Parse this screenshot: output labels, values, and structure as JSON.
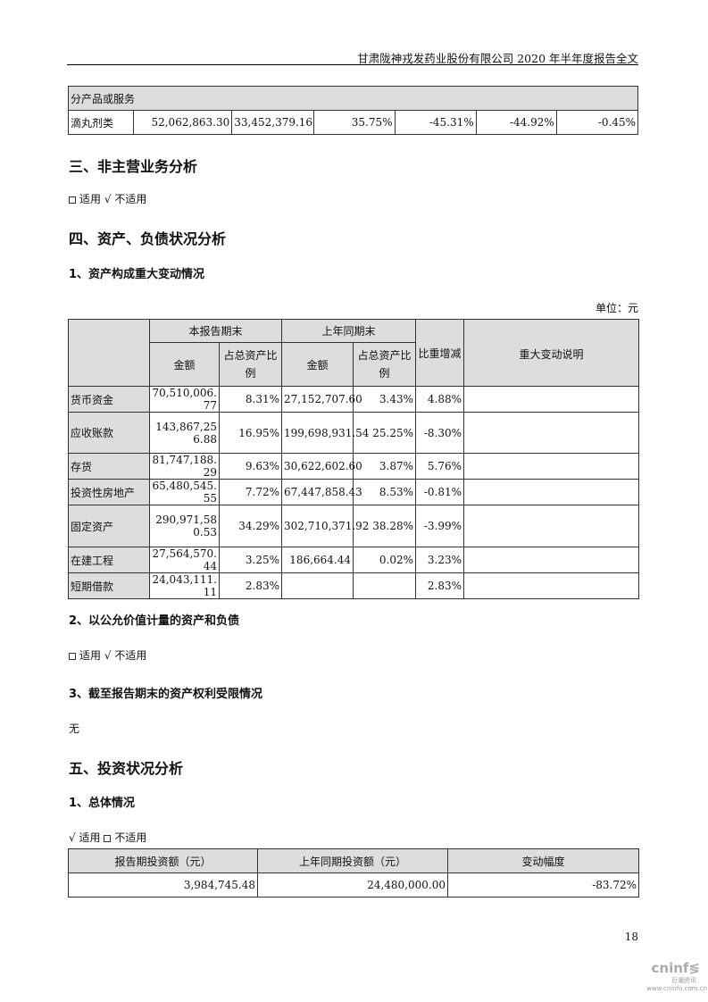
{
  "header": "甘肃陇神戎发药业股份有限公司 2020 年半年度报告全文",
  "product_table": {
    "section": "分产品或服务",
    "row": [
      "滴丸剂类",
      "52,062,863.30",
      "33,452,379.16",
      "35.75%",
      "-45.31%",
      "-44.92%",
      "-0.45%"
    ]
  },
  "s3": {
    "title": "三、非主营业务分析",
    "applicable": "适用",
    "sqrt": "√",
    "not_applicable": "不适用"
  },
  "s4": {
    "title": "四、资产、负债状况分析",
    "sub1": "1、资产构成重大变动情况",
    "unit": "单位：元",
    "headers": {
      "current": "本报告期末",
      "prior": "上年同期末",
      "amount": "金额",
      "ratio": "占总资产比例",
      "change": "比重增减",
      "explain": "重大变动说明"
    },
    "rows": [
      [
        "货币资金",
        "70,510,006.77",
        "8.31%",
        "27,152,707.60",
        "3.43%",
        "4.88%",
        ""
      ],
      [
        "应收账款",
        "143,867,256.88",
        "16.95%",
        "199,698,931.54",
        "25.25%",
        "-8.30%",
        ""
      ],
      [
        "存货",
        "81,747,188.29",
        "9.63%",
        "30,622,602.60",
        "3.87%",
        "5.76%",
        ""
      ],
      [
        "投资性房地产",
        "65,480,545.55",
        "7.72%",
        "67,447,858.43",
        "8.53%",
        "-0.81%",
        ""
      ],
      [
        "固定资产",
        "290,971,580.53",
        "34.29%",
        "302,710,371.92",
        "38.28%",
        "-3.99%",
        ""
      ],
      [
        "在建工程",
        "27,564,570.44",
        "3.25%",
        "186,664.44",
        "0.02%",
        "3.23%",
        ""
      ],
      [
        "短期借款",
        "24,043,111.11",
        "2.83%",
        "",
        "",
        "2.83%",
        ""
      ]
    ],
    "sub2": "2、以公允价值计量的资产和负债",
    "sub3": "3、截至报告期末的资产权利受限情况",
    "none": "无"
  },
  "s5": {
    "title": "五、投资状况分析",
    "sub1": "1、总体情况",
    "headers": [
      "报告期投资额（元）",
      "上年同期投资额（元）",
      "变动幅度"
    ],
    "row": [
      "3,984,745.48",
      "24,480,000.00",
      "-83.72%"
    ]
  },
  "page_number": "18",
  "watermark": {
    "brand": "cninf",
    "cn": "巨潮资讯",
    "url": "www.cninfo.com.cn"
  }
}
